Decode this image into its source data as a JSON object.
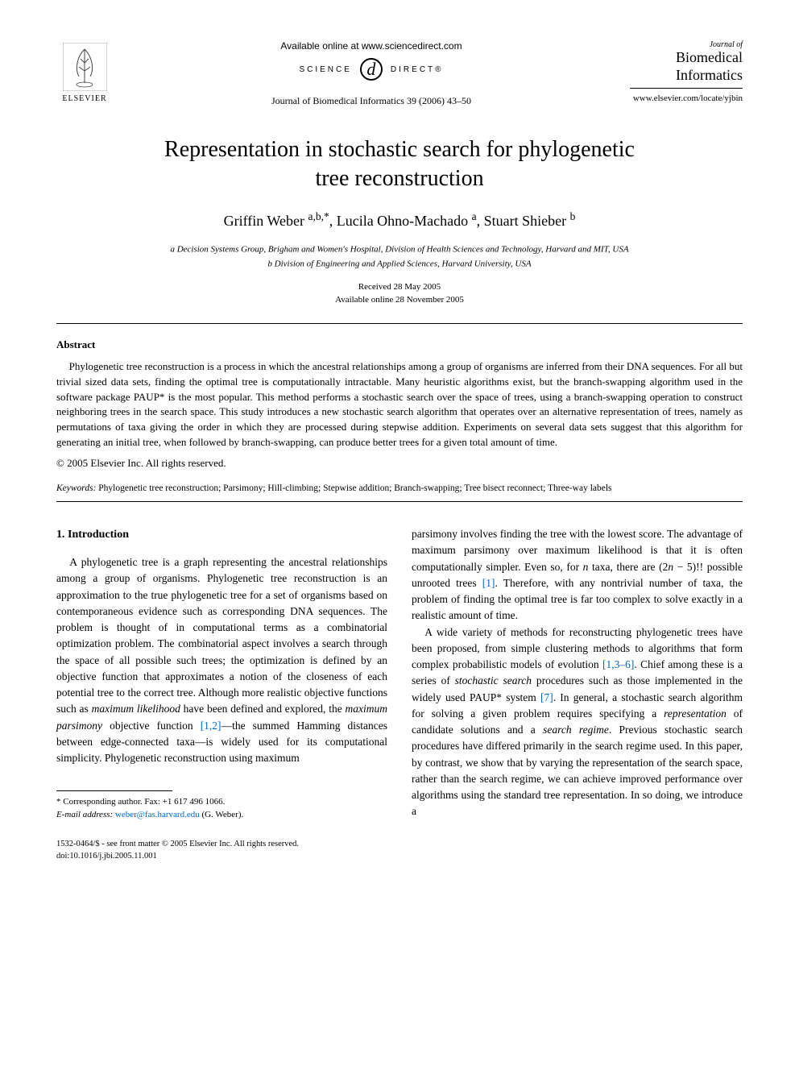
{
  "header": {
    "available_online": "Available online at www.sciencedirect.com",
    "science_left": "SCIENCE",
    "science_glyph": "d",
    "science_right": "DIRECT®",
    "journal_citation": "Journal of Biomedical Informatics 39 (2006) 43–50",
    "elsevier_label": "ELSEVIER",
    "journal_of": "Journal of",
    "journal_name_1": "Biomedical",
    "journal_name_2": "Informatics",
    "journal_url": "www.elsevier.com/locate/yjbin"
  },
  "article": {
    "title_line1": "Representation in stochastic search for phylogenetic",
    "title_line2": "tree reconstruction",
    "authors_html": "Griffin Weber <sup>a,b,*</sup>, Lucila Ohno-Machado <sup>a</sup>, Stuart Shieber <sup>b</sup>",
    "affiliation_a": "a Decision Systems Group, Brigham and Women's Hospital, Division of Health Sciences and Technology, Harvard and MIT, USA",
    "affiliation_b": "b Division of Engineering and Applied Sciences, Harvard University, USA",
    "received": "Received 28 May 2005",
    "available": "Available online 28 November 2005"
  },
  "abstract": {
    "heading": "Abstract",
    "text": "Phylogenetic tree reconstruction is a process in which the ancestral relationships among a group of organisms are inferred from their DNA sequences. For all but trivial sized data sets, finding the optimal tree is computationally intractable. Many heuristic algorithms exist, but the branch-swapping algorithm used in the software package PAUP* is the most popular. This method performs a stochastic search over the space of trees, using a branch-swapping operation to construct neighboring trees in the search space. This study introduces a new stochastic search algorithm that operates over an alternative representation of trees, namely as permutations of taxa giving the order in which they are processed during stepwise addition. Experiments on several data sets suggest that this algorithm for generating an initial tree, when followed by branch-swapping, can produce better trees for a given total amount of time.",
    "copyright": "© 2005 Elsevier Inc. All rights reserved."
  },
  "keywords": {
    "label": "Keywords:",
    "text": " Phylogenetic tree reconstruction; Parsimony; Hill-climbing; Stepwise addition; Branch-swapping; Tree bisect reconnect; Three-way labels"
  },
  "body": {
    "section_heading": "1. Introduction",
    "col1_p1": "A phylogenetic tree is a graph representing the ancestral relationships among a group of organisms. Phylogenetic tree reconstruction is an approximation to the true phylogenetic tree for a set of organisms based on contemporaneous evidence such as corresponding DNA sequences. The problem is thought of in computational terms as a combinatorial optimization problem. The combinatorial aspect involves a search through the space of all possible such trees; the optimization is defined by an objective function that approximates a notion of the closeness of each potential tree to the correct tree. Although more realistic objective functions such as ",
    "col1_p1_em1": "maximum likelihood",
    "col1_p1_mid": " have been defined and explored, the ",
    "col1_p1_em2": "maximum parsimony",
    "col1_p1_after": " objective function ",
    "col1_p1_cite": "[1,2]",
    "col1_p1_tail": "—the summed Hamming distances between edge-connected taxa—is widely used for its computational simplicity. Phylogenetic reconstruction using maximum",
    "col2_p1": "parsimony involves finding the tree with the lowest score. The advantage of maximum parsimony over maximum likelihood is that it is often computationally simpler. Even so, for ",
    "col2_p1_n": "n",
    "col2_p1_mid": " taxa, there are (2",
    "col2_p1_n2": "n",
    "col2_p1_mid2": " − 5)!! possible unrooted trees ",
    "col2_p1_cite": "[1]",
    "col2_p1_tail": ". Therefore, with any nontrivial number of taxa, the problem of finding the optimal tree is far too complex to solve exactly in a realistic amount of time.",
    "col2_p2_a": "A wide variety of methods for reconstructing phylogenetic trees have been proposed, from simple clustering methods to algorithms that form complex probabilistic models of evolution ",
    "col2_p2_cite1": "[1,3–6]",
    "col2_p2_b": ". Chief among these is a series of ",
    "col2_p2_em1": "stochastic search",
    "col2_p2_c": " procedures such as those implemented in the widely used PAUP* system ",
    "col2_p2_cite2": "[7]",
    "col2_p2_d": ". In general, a stochastic search algorithm for solving a given problem requires specifying a ",
    "col2_p2_em2": "representation",
    "col2_p2_e": " of candidate solutions and a ",
    "col2_p2_em3": "search regime",
    "col2_p2_f": ". Previous stochastic search procedures have differed primarily in the search regime used. In this paper, by contrast, we show that by varying the representation of the search space, rather than the search regime, we can achieve improved performance over algorithms using the standard tree representation. In so doing, we introduce a"
  },
  "footnote": {
    "corresponding": "* Corresponding author. Fax: +1 617 496 1066.",
    "email_label": "E-mail address:",
    "email": "weber@fas.harvard.edu",
    "email_tail": " (G. Weber)."
  },
  "bottom": {
    "issn": "1532-0464/$ - see front matter © 2005 Elsevier Inc. All rights reserved.",
    "doi": "doi:10.1016/j.jbi.2005.11.001"
  }
}
